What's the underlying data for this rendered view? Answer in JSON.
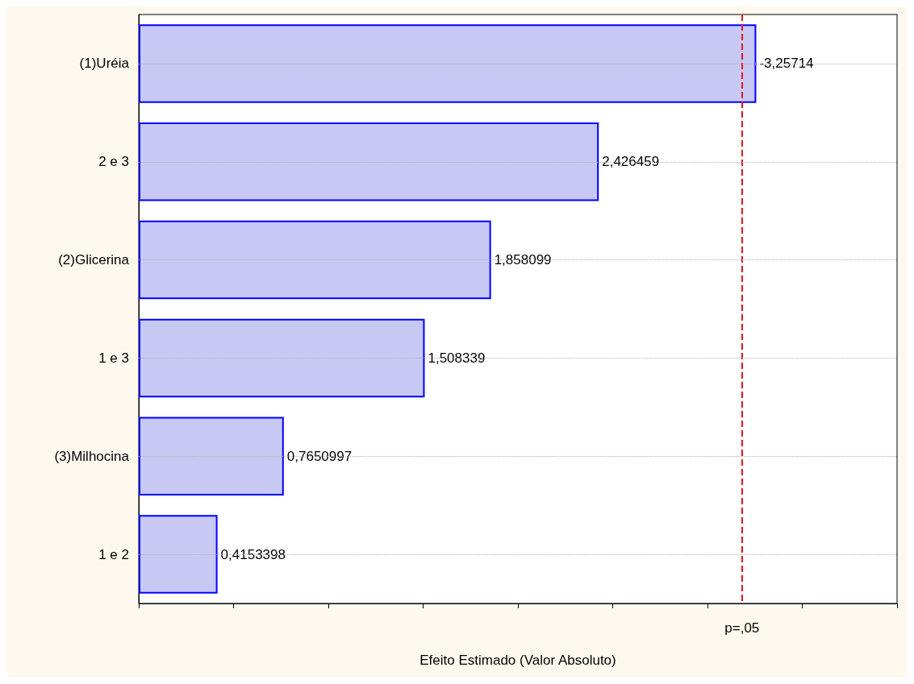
{
  "chart_data": {
    "type": "bar",
    "orientation": "horizontal",
    "xlabel": "Efeito Estimado (Valor Absoluto)",
    "categories": [
      "(1)Uréia",
      "2 e 3",
      "(2)Glicerina",
      "1 e 3",
      "(3)Milhocina",
      "1 e 2"
    ],
    "values": [
      3.25714,
      2.426459,
      1.858099,
      1.508339,
      0.7650997,
      0.4153398
    ],
    "value_labels": [
      "-3,25714",
      "2,426459",
      "1,858099",
      "1,508339",
      "0,7650997",
      "0,4153398"
    ],
    "color": "#c8c8f4",
    "xlim": [
      0,
      4
    ],
    "xticks": [
      {
        "value": 0,
        "label": null
      },
      {
        "value": 0.5,
        "label": null
      },
      {
        "value": 1,
        "label": null
      },
      {
        "value": 1.5,
        "label": null
      },
      {
        "value": 2,
        "label": null
      },
      {
        "value": 2.5,
        "label": null
      },
      {
        "value": 3,
        "label": null
      },
      {
        "value": 3.5,
        "label": null
      },
      {
        "value": 4,
        "label": null
      }
    ],
    "ref_lines": [
      {
        "axis": "x",
        "value": 3.182,
        "label": "p=,05",
        "color": "#e8141c",
        "line_style": "dashed"
      }
    ],
    "grid": "y",
    "tick_labels": "y"
  }
}
